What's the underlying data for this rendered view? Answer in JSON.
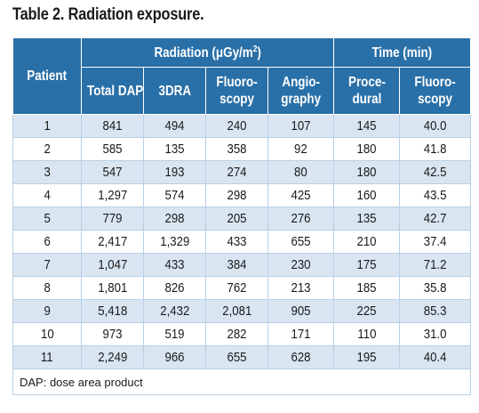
{
  "title": "Table 2. Radiation exposure.",
  "headers": {
    "patient": "Patient",
    "radiation_group_base": "Radiation (μGy/m",
    "radiation_group_sup": "2",
    "radiation_group_end": ")",
    "time_group": "Time (min)",
    "total_dap": "Total DAP",
    "dra": "3DRA",
    "fluoro_line1": "Fluoro-",
    "fluoro_line2": "scopy",
    "angio_line1": "Angio-",
    "angio_line2": "graphy",
    "proc_line1": "Proce-",
    "proc_line2": "dural",
    "time_fluoro_line1": "Fluoro-",
    "time_fluoro_line2": "scopy"
  },
  "rows": [
    [
      "1",
      "841",
      "494",
      "240",
      "107",
      "145",
      "40.0"
    ],
    [
      "2",
      "585",
      "135",
      "358",
      "92",
      "180",
      "41.8"
    ],
    [
      "3",
      "547",
      "193",
      "274",
      "80",
      "180",
      "42.5"
    ],
    [
      "4",
      "1,297",
      "574",
      "298",
      "425",
      "160",
      "43.5"
    ],
    [
      "5",
      "779",
      "298",
      "205",
      "276",
      "135",
      "42.7"
    ],
    [
      "6",
      "2,417",
      "1,329",
      "433",
      "655",
      "210",
      "37.4"
    ],
    [
      "7",
      "1,047",
      "433",
      "384",
      "230",
      "175",
      "71.2"
    ],
    [
      "8",
      "1,801",
      "826",
      "762",
      "213",
      "185",
      "35.8"
    ],
    [
      "9",
      "5,418",
      "2,432",
      "2,081",
      "905",
      "225",
      "85.3"
    ],
    [
      "10",
      "973",
      "519",
      "282",
      "171",
      "110",
      "31.0"
    ],
    [
      "11",
      "2,249",
      "966",
      "655",
      "628",
      "195",
      "40.4"
    ]
  ],
  "footnote": "DAP: dose area product",
  "colors": {
    "header_bg": "#2a70a8",
    "row_stripe": "#d9e6f2",
    "border": "#b7cfe4"
  }
}
